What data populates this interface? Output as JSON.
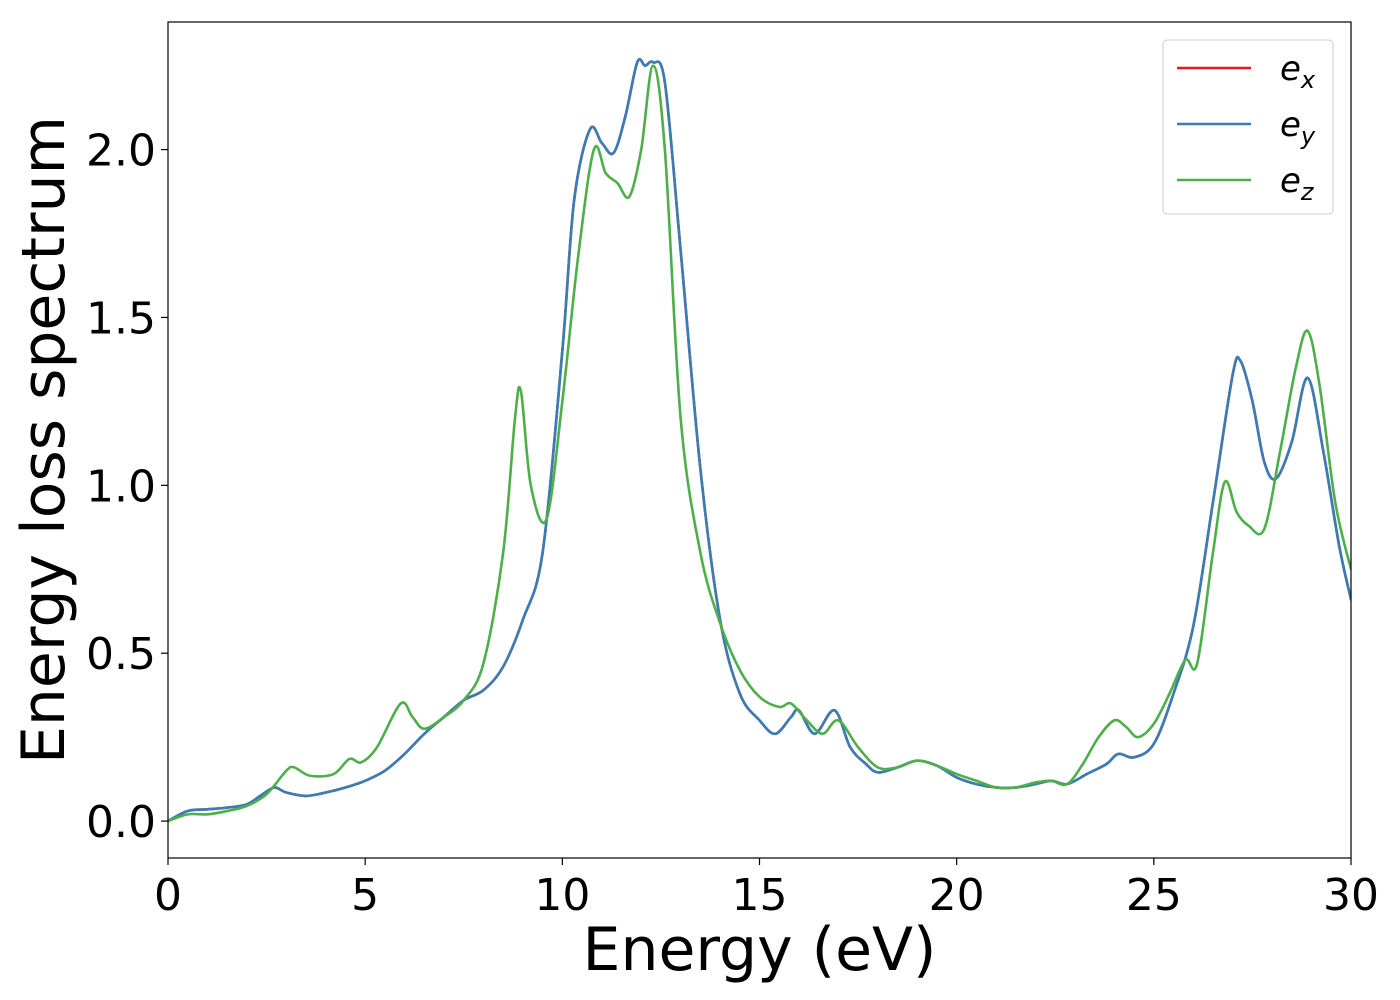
{
  "chart_data": {
    "type": "line",
    "title": "",
    "xlabel": "Energy (eV)",
    "ylabel": "Energy loss spectrum",
    "xlim": [
      0,
      30
    ],
    "ylim": [
      -0.11,
      2.38
    ],
    "xticks": [
      0,
      5,
      10,
      15,
      20,
      25,
      30
    ],
    "xtick_labels": [
      "0",
      "5",
      "10",
      "15",
      "20",
      "25",
      "30"
    ],
    "yticks": [
      0.0,
      0.5,
      1.0,
      1.5,
      2.0
    ],
    "ytick_labels": [
      "0.0",
      "0.5",
      "1.0",
      "1.5",
      "2.0"
    ],
    "grid": false,
    "legend_position": "top-right",
    "series": [
      {
        "name": "e_x",
        "legend_base": "e",
        "legend_sub": "x",
        "color": "#e41a1c",
        "x": [
          0,
          0.5,
          1,
          1.5,
          2,
          2.4,
          2.7,
          3,
          3.5,
          4,
          4.5,
          5,
          5.5,
          6,
          6.5,
          7,
          7.5,
          8,
          8.5,
          9,
          9.5,
          10,
          10.3,
          10.7,
          11,
          11.3,
          11.6,
          11.9,
          12.1,
          12.3,
          12.6,
          13,
          13.5,
          14,
          14.5,
          15,
          15.4,
          15.8,
          16,
          16.4,
          16.9,
          17.3,
          17.7,
          18,
          18.5,
          19,
          19.5,
          20,
          20.5,
          21,
          21.5,
          22,
          22.4,
          22.8,
          23.3,
          23.8,
          24.1,
          24.5,
          25,
          25.5,
          26,
          26.5,
          27,
          27.2,
          27.5,
          27.8,
          28.1,
          28.5,
          28.9,
          29.3,
          29.7,
          30
        ],
        "y": [
          0.0,
          0.03,
          0.035,
          0.04,
          0.05,
          0.08,
          0.1,
          0.085,
          0.075,
          0.085,
          0.1,
          0.12,
          0.15,
          0.2,
          0.26,
          0.31,
          0.36,
          0.39,
          0.46,
          0.6,
          0.8,
          1.4,
          1.85,
          2.06,
          2.02,
          1.99,
          2.1,
          2.26,
          2.25,
          2.26,
          2.2,
          1.7,
          1.05,
          0.6,
          0.38,
          0.3,
          0.26,
          0.31,
          0.33,
          0.26,
          0.33,
          0.22,
          0.17,
          0.145,
          0.16,
          0.18,
          0.165,
          0.13,
          0.11,
          0.1,
          0.1,
          0.11,
          0.12,
          0.11,
          0.14,
          0.17,
          0.2,
          0.19,
          0.23,
          0.38,
          0.58,
          0.95,
          1.33,
          1.37,
          1.25,
          1.07,
          1.02,
          1.13,
          1.32,
          1.1,
          0.82,
          0.66
        ]
      },
      {
        "name": "e_y",
        "legend_base": "e",
        "legend_sub": "y",
        "color": "#377eb8",
        "x": [
          0,
          0.5,
          1,
          1.5,
          2,
          2.4,
          2.7,
          3,
          3.5,
          4,
          4.5,
          5,
          5.5,
          6,
          6.5,
          7,
          7.5,
          8,
          8.5,
          9,
          9.5,
          10,
          10.3,
          10.7,
          11,
          11.3,
          11.6,
          11.9,
          12.1,
          12.3,
          12.6,
          13,
          13.5,
          14,
          14.5,
          15,
          15.4,
          15.8,
          16,
          16.4,
          16.9,
          17.3,
          17.7,
          18,
          18.5,
          19,
          19.5,
          20,
          20.5,
          21,
          21.5,
          22,
          22.4,
          22.8,
          23.3,
          23.8,
          24.1,
          24.5,
          25,
          25.5,
          26,
          26.5,
          27,
          27.2,
          27.5,
          27.8,
          28.1,
          28.5,
          28.9,
          29.3,
          29.7,
          30
        ],
        "y": [
          0.0,
          0.03,
          0.035,
          0.04,
          0.05,
          0.08,
          0.1,
          0.085,
          0.075,
          0.085,
          0.1,
          0.12,
          0.15,
          0.2,
          0.26,
          0.31,
          0.36,
          0.39,
          0.46,
          0.6,
          0.8,
          1.4,
          1.85,
          2.06,
          2.02,
          1.99,
          2.1,
          2.26,
          2.25,
          2.26,
          2.2,
          1.7,
          1.05,
          0.6,
          0.38,
          0.3,
          0.26,
          0.31,
          0.33,
          0.26,
          0.33,
          0.22,
          0.17,
          0.145,
          0.16,
          0.18,
          0.165,
          0.13,
          0.11,
          0.1,
          0.1,
          0.11,
          0.12,
          0.11,
          0.14,
          0.17,
          0.2,
          0.19,
          0.23,
          0.38,
          0.58,
          0.95,
          1.33,
          1.37,
          1.25,
          1.07,
          1.02,
          1.13,
          1.32,
          1.1,
          0.82,
          0.66
        ]
      },
      {
        "name": "e_z",
        "legend_base": "e",
        "legend_sub": "z",
        "color": "#4daf4a",
        "x": [
          0,
          0.5,
          1,
          1.5,
          2,
          2.5,
          3,
          3.2,
          3.6,
          4.2,
          4.6,
          4.9,
          5.3,
          5.9,
          6.2,
          6.5,
          7,
          7.5,
          8,
          8.5,
          8.8,
          8.95,
          9.2,
          9.6,
          10,
          10.4,
          10.8,
          11.1,
          11.4,
          11.7,
          12,
          12.3,
          12.6,
          13,
          13.5,
          14,
          14.5,
          15,
          15.5,
          15.8,
          16.2,
          16.6,
          17,
          17.5,
          18,
          18.5,
          19,
          19.5,
          20,
          20.5,
          21,
          21.5,
          22,
          22.4,
          22.8,
          23.2,
          23.6,
          24,
          24.3,
          24.6,
          25,
          25.4,
          25.8,
          26.1,
          26.5,
          26.8,
          27.1,
          27.4,
          27.8,
          28.2,
          28.6,
          28.9,
          29.2,
          29.6,
          30
        ],
        "y": [
          0.0,
          0.02,
          0.02,
          0.03,
          0.045,
          0.08,
          0.15,
          0.16,
          0.135,
          0.14,
          0.185,
          0.175,
          0.22,
          0.35,
          0.31,
          0.275,
          0.31,
          0.36,
          0.47,
          0.8,
          1.2,
          1.28,
          1.0,
          0.9,
          1.25,
          1.68,
          2.0,
          1.93,
          1.9,
          1.86,
          2.0,
          2.25,
          2.0,
          1.2,
          0.8,
          0.59,
          0.45,
          0.37,
          0.34,
          0.35,
          0.3,
          0.26,
          0.3,
          0.22,
          0.16,
          0.16,
          0.18,
          0.165,
          0.14,
          0.12,
          0.1,
          0.1,
          0.115,
          0.12,
          0.11,
          0.17,
          0.25,
          0.3,
          0.28,
          0.25,
          0.29,
          0.38,
          0.48,
          0.47,
          0.8,
          1.01,
          0.92,
          0.88,
          0.87,
          1.1,
          1.35,
          1.46,
          1.3,
          0.95,
          0.75
        ]
      }
    ]
  }
}
